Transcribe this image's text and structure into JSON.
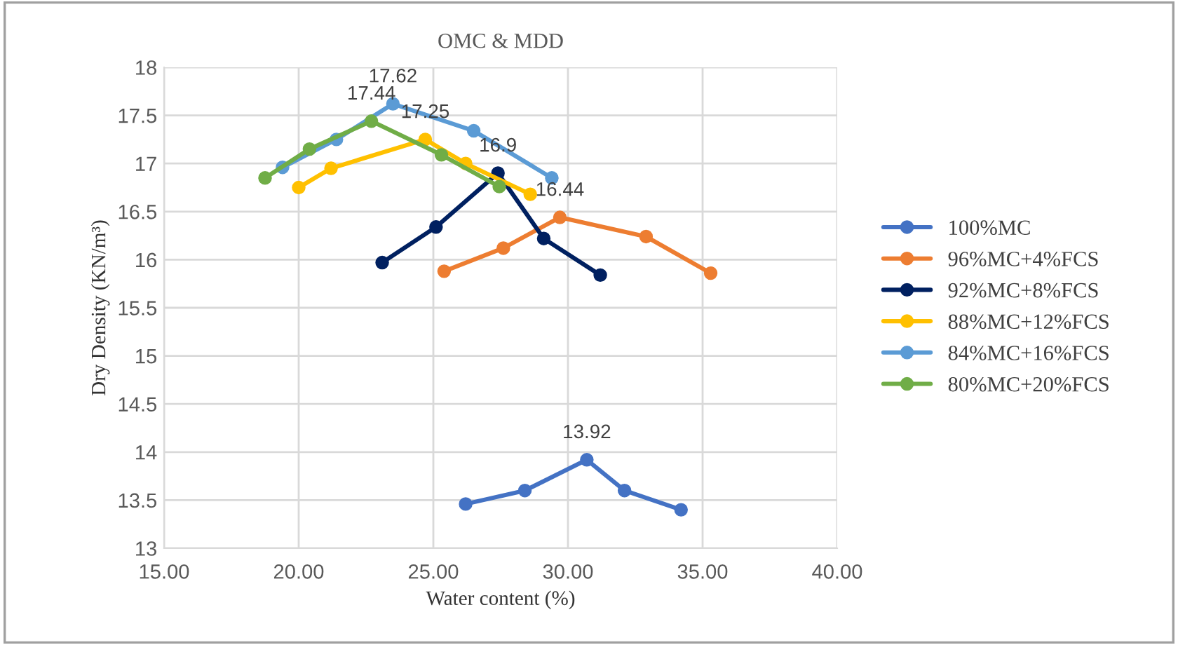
{
  "chart_data": {
    "type": "line",
    "title": "OMC & MDD",
    "xlabel": "Water content (%)",
    "ylabel": "Dry Density (KN/m³)",
    "xlim": [
      15,
      40
    ],
    "xticks": [
      {
        "value": 15,
        "label": "15.00"
      },
      {
        "value": 20,
        "label": "20.00"
      },
      {
        "value": 25,
        "label": "25.00"
      },
      {
        "value": 30,
        "label": "30.00"
      },
      {
        "value": 35,
        "label": "35.00"
      },
      {
        "value": 40,
        "label": "40.00"
      }
    ],
    "ylim": [
      13,
      18
    ],
    "yticks": [
      13,
      13.5,
      14,
      14.5,
      15,
      15.5,
      16,
      16.5,
      17,
      17.5,
      18
    ],
    "grid": true,
    "legend": "right",
    "marker": "circle",
    "line_style": "solid",
    "series": [
      {
        "name": "100%MC",
        "color": "#4472c4",
        "x": [
          26.2,
          28.4,
          30.7,
          32.1,
          34.2
        ],
        "values": [
          13.46,
          13.6,
          13.92,
          13.6,
          13.4
        ],
        "value_labels": [
          null,
          null,
          "13.92",
          null,
          null
        ]
      },
      {
        "name": "96%MC+4%FCS",
        "color": "#ed7d31",
        "x": [
          25.4,
          27.6,
          29.7,
          32.9,
          35.3
        ],
        "values": [
          15.88,
          16.12,
          16.44,
          16.24,
          15.86
        ],
        "value_labels": [
          null,
          null,
          "16.44",
          null,
          null
        ]
      },
      {
        "name": "92%MC+8%FCS",
        "color": "#002060",
        "x": [
          23.1,
          25.1,
          27.4,
          29.1,
          31.2
        ],
        "values": [
          15.97,
          16.34,
          16.9,
          16.22,
          15.84
        ],
        "value_labels": [
          null,
          null,
          "16.9",
          null,
          null
        ]
      },
      {
        "name": "88%MC+12%FCS",
        "color": "#ffc000",
        "x": [
          20.0,
          21.2,
          24.7,
          26.2,
          28.6
        ],
        "values": [
          16.75,
          16.95,
          17.25,
          17.0,
          16.68
        ],
        "value_labels": [
          null,
          null,
          "17.25",
          null,
          null
        ]
      },
      {
        "name": "84%MC+16%FCS",
        "color": "#5b9bd5",
        "x": [
          19.4,
          21.4,
          23.5,
          26.5,
          29.4
        ],
        "values": [
          16.96,
          17.25,
          17.62,
          17.34,
          16.85
        ],
        "value_labels": [
          null,
          null,
          "17.62",
          null,
          null
        ]
      },
      {
        "name": "80%MC+20%FCS",
        "color": "#70ad47",
        "x": [
          18.75,
          20.4,
          22.7,
          25.3,
          27.45
        ],
        "values": [
          16.85,
          17.15,
          17.44,
          17.09,
          16.76
        ],
        "value_labels": [
          null,
          null,
          "17.44",
          null,
          null
        ]
      }
    ]
  }
}
